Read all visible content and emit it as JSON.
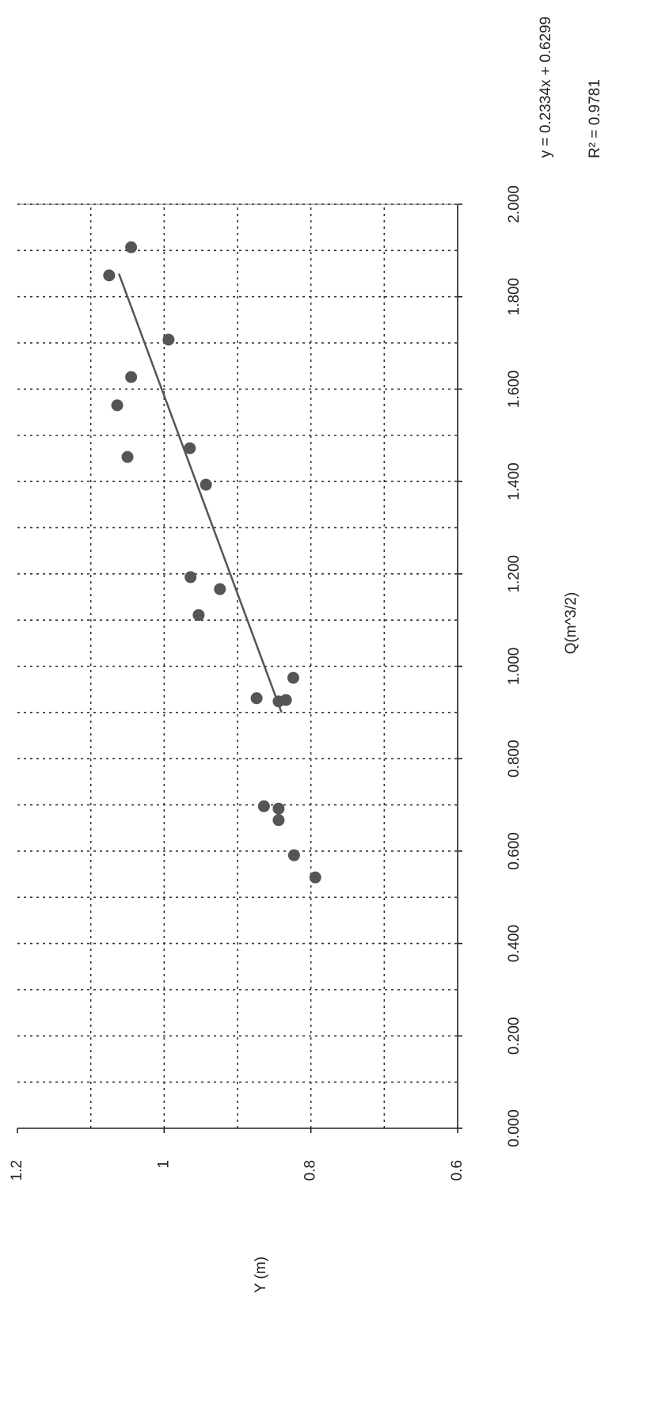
{
  "chart_data": {
    "type": "scatter",
    "xlabel": "Q(m^3/2)",
    "ylabel": "Y (m)",
    "annotations": [
      "y = 0.2334x + 0.6299",
      "R² = 0.9781"
    ],
    "xlim": [
      0,
      2
    ],
    "xticks": [
      {
        "value": 0,
        "label": "0.000"
      },
      {
        "value": 0.2,
        "label": "0.200"
      },
      {
        "value": 0.4,
        "label": "0.400"
      },
      {
        "value": 0.6,
        "label": "0.600"
      },
      {
        "value": 0.8,
        "label": "0.800"
      },
      {
        "value": 1,
        "label": "1.000"
      },
      {
        "value": 1.2,
        "label": "1.200"
      },
      {
        "value": 1.4,
        "label": "1.400"
      },
      {
        "value": 1.6,
        "label": "1.600"
      },
      {
        "value": 1.8,
        "label": "1.800"
      },
      {
        "value": 2,
        "label": "2.000"
      }
    ],
    "xgrid": [
      0.1,
      0.2,
      0.3,
      0.4,
      0.5,
      0.6,
      0.7,
      0.8,
      0.9,
      1,
      1.1,
      1.2,
      1.3,
      1.4,
      1.5,
      1.6,
      1.7,
      1.8,
      1.9,
      2
    ],
    "ylim": [
      0.6,
      1.2
    ],
    "yticks": [
      0.6,
      0.8,
      1,
      1.2
    ],
    "ygrid": [
      0.7,
      0.8,
      0.9,
      1,
      1.1
    ],
    "color": "#555555",
    "series": [
      {
        "x": [
          1.907,
          1.846,
          1.707,
          1.626,
          1.565,
          1.453,
          1.472,
          1.393,
          1.193,
          1.167,
          1.111,
          0.975,
          0.931,
          0.924,
          0.927,
          0.697,
          0.692,
          0.667,
          0.591,
          0.543
        ],
        "values": [
          1.045,
          1.075,
          0.994,
          1.045,
          1.064,
          1.05,
          0.965,
          0.943,
          0.964,
          0.924,
          0.953,
          0.824,
          0.874,
          0.844,
          0.834,
          0.864,
          0.844,
          0.844,
          0.823,
          0.794
        ]
      }
    ],
    "trendline": {
      "x": [
        0.9,
        1.85
      ]
    }
  }
}
